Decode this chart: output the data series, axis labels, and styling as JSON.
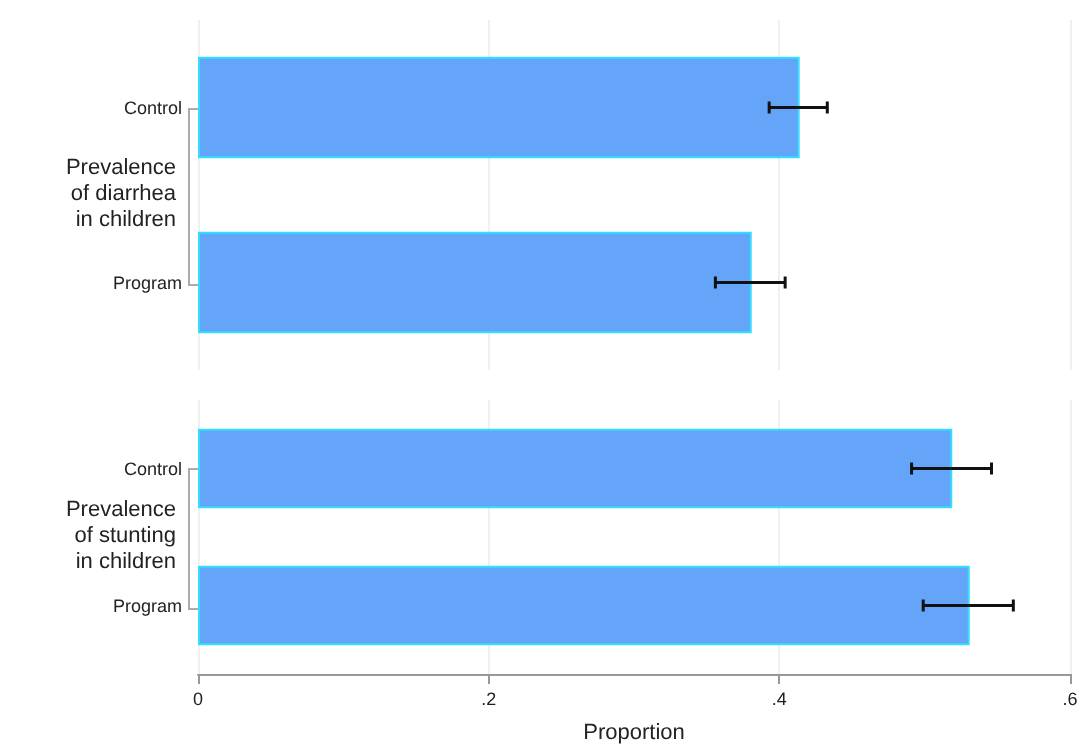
{
  "chart_data": [
    {
      "type": "bar",
      "orientation": "horizontal",
      "ylabel": "Prevalence\nof diarrhea\nin children",
      "categories": [
        "Control",
        "Program"
      ],
      "values": [
        0.414,
        0.381
      ],
      "errors": [
        [
          0.393,
          0.433
        ],
        [
          0.356,
          0.404
        ]
      ],
      "color": "#64a5fa",
      "xlim": [
        0,
        0.6
      ],
      "xticks": [
        0,
        0.2,
        0.4,
        0.6
      ],
      "tick_labels": "y",
      "grid": "x"
    },
    {
      "type": "bar",
      "orientation": "horizontal",
      "ylabel": "Prevalence\nof stunting\nin children",
      "xlabel": "Proportion",
      "categories": [
        "Control",
        "Program"
      ],
      "values": [
        0.519,
        0.531
      ],
      "errors": [
        [
          0.491,
          0.546
        ],
        [
          0.499,
          0.561
        ]
      ],
      "color": "#64a5fa",
      "xlim": [
        0,
        0.6
      ],
      "xticks": [
        {
          "value": 0,
          "label": "0"
        },
        {
          "value": 0.2,
          "label": ".2"
        },
        {
          "value": 0.4,
          "label": ".4"
        },
        {
          "value": 0.6,
          "label": ".6"
        }
      ],
      "grid": "x"
    }
  ]
}
